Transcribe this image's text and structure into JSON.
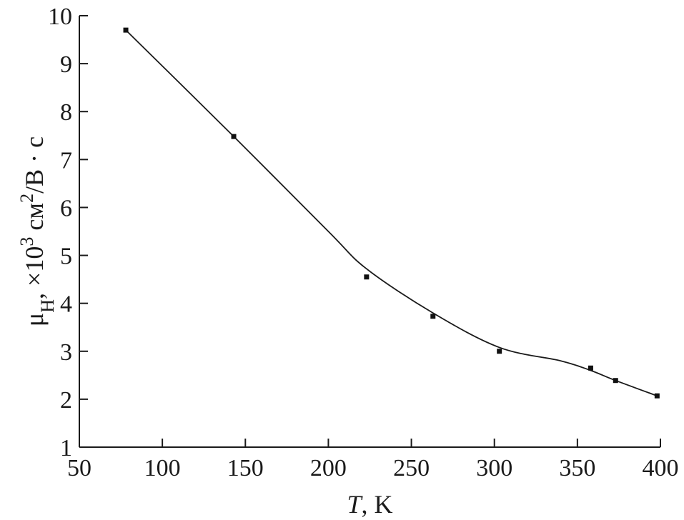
{
  "chart_data": {
    "type": "scatter",
    "title": "",
    "xlabel_italic": "T",
    "xlabel_rest": ", K",
    "ylabel_mu": "μ",
    "ylabel_sub": "H",
    "ylabel_mid": ", ×10",
    "ylabel_sup1": "3",
    "ylabel_unit": " см",
    "ylabel_sup2": "2",
    "ylabel_end": "/В · с",
    "xlim": [
      50,
      400
    ],
    "ylim": [
      1,
      10
    ],
    "x_ticks": [
      50,
      100,
      150,
      200,
      250,
      300,
      350,
      400
    ],
    "y_ticks": [
      1,
      2,
      3,
      4,
      5,
      6,
      7,
      8,
      9,
      10
    ],
    "grid": false,
    "series": [
      {
        "x": [
          78,
          143,
          223,
          263,
          303,
          358,
          373,
          398
        ],
        "y": [
          9.7,
          7.48,
          4.55,
          3.73,
          3.0,
          2.65,
          2.39,
          2.07
        ]
      }
    ],
    "fit_curve": {
      "x": [
        78,
        143,
        200,
        223,
        263,
        303,
        340,
        358,
        373,
        398
      ],
      "y": [
        9.7,
        7.48,
        5.5,
        4.72,
        3.8,
        3.08,
        2.8,
        2.6,
        2.39,
        2.07
      ]
    },
    "colors": {
      "ink": "#1a1a1a"
    }
  }
}
